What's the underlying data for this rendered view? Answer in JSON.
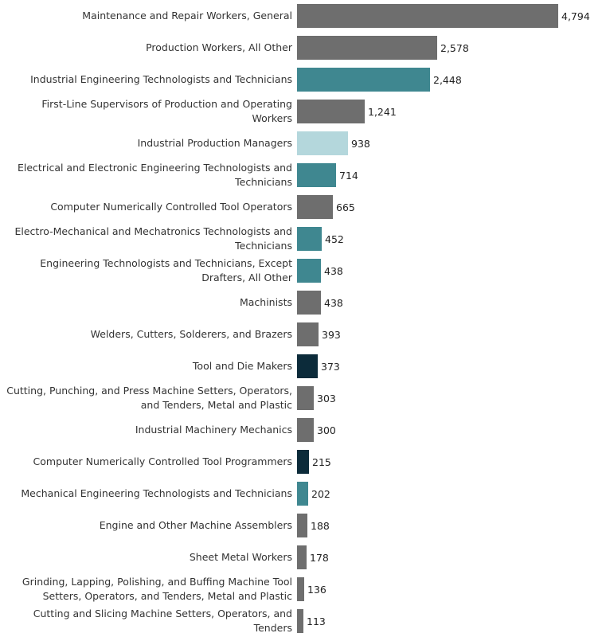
{
  "chart_data": {
    "type": "bar",
    "orientation": "horizontal",
    "title": "",
    "xlabel": "",
    "ylabel": "",
    "xlim": [
      0,
      4794
    ],
    "categories": [
      "Maintenance and Repair Workers, General",
      "Production Workers, All Other",
      "Industrial Engineering Technologists and Technicians",
      "First-Line Supervisors of Production and Operating Workers",
      "Industrial Production Managers",
      "Electrical and Electronic Engineering Technologists and Technicians",
      "Computer Numerically Controlled Tool Operators",
      "Electro-Mechanical and Mechatronics Technologists and Technicians",
      "Engineering Technologists and Technicians, Except Drafters, All Other",
      "Machinists",
      "Welders, Cutters, Solderers, and Brazers",
      "Tool and Die Makers",
      "Cutting, Punching, and Press Machine Setters, Operators, and Tenders, Metal and Plastic",
      "Industrial Machinery Mechanics",
      "Computer Numerically Controlled Tool Programmers",
      "Mechanical Engineering Technologists and Technicians",
      "Engine and Other Machine Assemblers",
      "Sheet Metal Workers",
      "Grinding, Lapping, Polishing, and Buffing Machine Tool Setters, Operators, and Tenders, Metal and Plastic",
      "Cutting and Slicing Machine Setters, Operators, and Tenders"
    ],
    "label_lines": [
      [
        "Maintenance and Repair Workers, General"
      ],
      [
        "Production Workers, All Other"
      ],
      [
        "Industrial Engineering Technologists and Technicians"
      ],
      [
        "First-Line Supervisors of Production and Operating Workers"
      ],
      [
        "Industrial Production Managers"
      ],
      [
        "Electrical and Electronic Engineering Technologists and",
        "Technicians"
      ],
      [
        "Computer Numerically Controlled Tool Operators"
      ],
      [
        "Electro-Mechanical and Mechatronics Technologists and",
        "Technicians"
      ],
      [
        "Engineering Technologists and Technicians, Except",
        "Drafters, All Other"
      ],
      [
        "Machinists"
      ],
      [
        "Welders, Cutters, Solderers, and Brazers"
      ],
      [
        "Tool and Die Makers"
      ],
      [
        "Cutting, Punching, and Press Machine Setters, Operators,",
        "and Tenders, Metal and Plastic"
      ],
      [
        "Industrial Machinery Mechanics"
      ],
      [
        "Computer Numerically Controlled Tool Programmers"
      ],
      [
        "Mechanical Engineering Technologists and Technicians"
      ],
      [
        "Engine and Other Machine Assemblers"
      ],
      [
        "Sheet Metal Workers"
      ],
      [
        "Grinding, Lapping, Polishing, and Buffing Machine Tool",
        "Setters, Operators, and Tenders, Metal and Plastic"
      ],
      [
        "Cutting and Slicing Machine Setters, Operators, and",
        "Tenders"
      ]
    ],
    "values": [
      4794,
      2578,
      2448,
      1241,
      938,
      714,
      665,
      452,
      438,
      438,
      393,
      373,
      303,
      300,
      215,
      202,
      188,
      178,
      136,
      113
    ],
    "value_labels": [
      "4,794",
      "2,578",
      "2,448",
      "1,241",
      "938",
      "714",
      "665",
      "452",
      "438",
      "438",
      "393",
      "373",
      "303",
      "300",
      "215",
      "202",
      "188",
      "178",
      "136",
      "113"
    ],
    "bar_colors": [
      "#6e6e6e",
      "#6e6e6e",
      "#3f8790",
      "#6e6e6e",
      "#b4d7dc",
      "#3f8790",
      "#6e6e6e",
      "#3f8790",
      "#3f8790",
      "#6e6e6e",
      "#6e6e6e",
      "#0c2b3a",
      "#6e6e6e",
      "#6e6e6e",
      "#0c2b3a",
      "#3f8790",
      "#6e6e6e",
      "#6e6e6e",
      "#6e6e6e",
      "#6e6e6e"
    ]
  }
}
